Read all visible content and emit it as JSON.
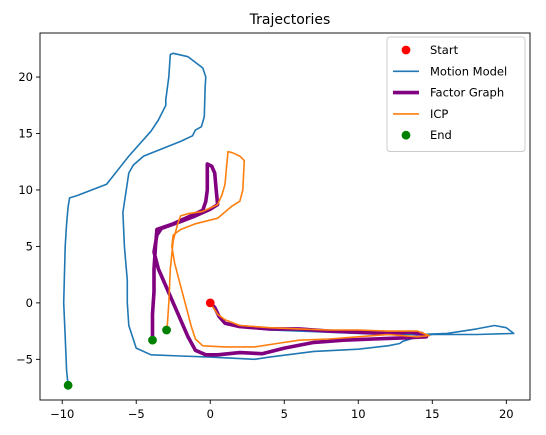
{
  "chart_data": {
    "type": "line",
    "title": "Trajectories",
    "xlabel": "",
    "ylabel": "",
    "xlim": [
      -11.5,
      21.6
    ],
    "ylim": [
      -8.6,
      23.9
    ],
    "xticks": [
      -10,
      -5,
      0,
      5,
      10,
      15,
      20
    ],
    "yticks": [
      -5,
      0,
      5,
      10,
      15,
      20
    ],
    "grid": false,
    "legend": {
      "placement": "top-right",
      "entries": [
        {
          "label": "Start",
          "kind": "marker",
          "color": "#ff0000"
        },
        {
          "label": "Motion Model",
          "kind": "line",
          "color": "#1f77b4",
          "width": "normal"
        },
        {
          "label": "Factor Graph",
          "kind": "line",
          "color": "#800080",
          "width": "thick"
        },
        {
          "label": "ICP",
          "kind": "line",
          "color": "#ff7f0e",
          "width": "normal"
        },
        {
          "label": "End",
          "kind": "marker",
          "color": "#008000"
        }
      ]
    },
    "series": [
      {
        "name": "Motion Model",
        "color": "#1f77b4",
        "style": "line",
        "points": [
          [
            0,
            0
          ],
          [
            0.5,
            -1.0
          ],
          [
            1.0,
            -1.8
          ],
          [
            2.5,
            -2.2
          ],
          [
            4.0,
            -2.4
          ],
          [
            6.0,
            -2.5
          ],
          [
            8.0,
            -2.6
          ],
          [
            10.0,
            -2.7
          ],
          [
            12.0,
            -2.8
          ],
          [
            14.0,
            -2.8
          ],
          [
            16.0,
            -2.7
          ],
          [
            18.0,
            -2.3
          ],
          [
            19.2,
            -2.0
          ],
          [
            20.0,
            -2.2
          ],
          [
            20.5,
            -2.7
          ],
          [
            18.0,
            -2.8
          ],
          [
            15.0,
            -2.8
          ],
          [
            14.0,
            -3.0
          ],
          [
            13.0,
            -3.4
          ],
          [
            12.8,
            -3.6
          ],
          [
            12.0,
            -3.8
          ],
          [
            10.0,
            -4.1
          ],
          [
            7.0,
            -4.3
          ],
          [
            4.0,
            -4.8
          ],
          [
            3.0,
            -5.0
          ],
          [
            1.5,
            -4.9
          ],
          [
            0,
            -4.8
          ],
          [
            -2.0,
            -4.7
          ],
          [
            -4.0,
            -4.6
          ],
          [
            -5.0,
            -4.0
          ],
          [
            -5.5,
            -2.0
          ],
          [
            -5.6,
            0
          ],
          [
            -5.6,
            2.0
          ],
          [
            -5.8,
            5.0
          ],
          [
            -5.9,
            8.0
          ],
          [
            -5.5,
            11.5
          ],
          [
            -5.2,
            12.2
          ],
          [
            -4.5,
            13.0
          ],
          [
            -2.0,
            14.3
          ],
          [
            -1.2,
            14.8
          ],
          [
            -1.0,
            15.3
          ],
          [
            -0.6,
            15.6
          ],
          [
            -0.4,
            16.5
          ],
          [
            -0.35,
            19.0
          ],
          [
            -0.3,
            20.0
          ],
          [
            -0.5,
            20.8
          ],
          [
            -1.5,
            21.8
          ],
          [
            -2.5,
            22.1
          ],
          [
            -2.7,
            22.0
          ],
          [
            -2.8,
            20.0
          ],
          [
            -3.0,
            18.0
          ],
          [
            -3.0,
            17.5
          ],
          [
            -3.5,
            16.2
          ],
          [
            -4.0,
            15.2
          ],
          [
            -5.5,
            13.0
          ],
          [
            -7.0,
            10.5
          ],
          [
            -9.0,
            9.5
          ],
          [
            -9.5,
            9.3
          ],
          [
            -9.6,
            8.5
          ],
          [
            -9.7,
            7.0
          ],
          [
            -9.8,
            5.0
          ],
          [
            -9.9,
            0
          ],
          [
            -9.8,
            -3.0
          ],
          [
            -9.7,
            -6.0
          ],
          [
            -9.6,
            -7.3
          ]
        ]
      },
      {
        "name": "Factor Graph",
        "color": "#800080",
        "style": "thick",
        "points": [
          [
            0,
            0
          ],
          [
            0.3,
            -0.4
          ],
          [
            0.6,
            -1.2
          ],
          [
            1.0,
            -1.8
          ],
          [
            2.0,
            -2.1
          ],
          [
            4.0,
            -2.3
          ],
          [
            6.0,
            -2.3
          ],
          [
            8.0,
            -2.5
          ],
          [
            10.0,
            -2.6
          ],
          [
            12.0,
            -2.7
          ],
          [
            13.5,
            -2.6
          ],
          [
            14.3,
            -2.7
          ],
          [
            14.6,
            -3.0
          ],
          [
            13.0,
            -3.1
          ],
          [
            11.0,
            -3.2
          ],
          [
            9.0,
            -3.3
          ],
          [
            7.0,
            -3.5
          ],
          [
            5.0,
            -4.0
          ],
          [
            3.5,
            -4.5
          ],
          [
            2.0,
            -4.4
          ],
          [
            0.5,
            -4.6
          ],
          [
            -0.3,
            -4.6
          ],
          [
            -1.0,
            -4.2
          ],
          [
            -1.5,
            -3.0
          ],
          [
            -2.0,
            -1.5
          ],
          [
            -2.5,
            0
          ],
          [
            -3.0,
            1.5
          ],
          [
            -3.5,
            3.0
          ],
          [
            -3.8,
            4.5
          ],
          [
            -3.6,
            6.0
          ],
          [
            -3.3,
            6.6
          ],
          [
            -2.0,
            7.2
          ],
          [
            -1.0,
            7.7
          ],
          [
            0,
            8.3
          ],
          [
            0.5,
            8.7
          ],
          [
            0.4,
            10.0
          ],
          [
            0.3,
            11.5
          ],
          [
            0.1,
            12.1
          ],
          [
            -0.2,
            12.3
          ],
          [
            -0.2,
            11.5
          ],
          [
            -0.2,
            10.0
          ],
          [
            -0.3,
            9.0
          ],
          [
            -0.5,
            8.2
          ],
          [
            -1.5,
            7.6
          ],
          [
            -2.5,
            7.0
          ],
          [
            -3.6,
            6.5
          ],
          [
            -3.7,
            5.0
          ],
          [
            -3.8,
            3.0
          ],
          [
            -3.8,
            1.0
          ],
          [
            -3.9,
            -1.0
          ],
          [
            -3.9,
            -3.3
          ]
        ]
      },
      {
        "name": "ICP",
        "color": "#ff7f0e",
        "style": "line",
        "points": [
          [
            0,
            0
          ],
          [
            0.2,
            -0.4
          ],
          [
            0.5,
            -1.0
          ],
          [
            1.0,
            -1.5
          ],
          [
            2.0,
            -2.0
          ],
          [
            4.0,
            -2.2
          ],
          [
            6.0,
            -2.3
          ],
          [
            8.0,
            -2.4
          ],
          [
            10.0,
            -2.4
          ],
          [
            12.0,
            -2.5
          ],
          [
            14.0,
            -2.5
          ],
          [
            14.8,
            -2.9
          ],
          [
            14.0,
            -3.0
          ],
          [
            12.0,
            -2.8
          ],
          [
            10.0,
            -3.0
          ],
          [
            8.0,
            -3.2
          ],
          [
            6.0,
            -3.3
          ],
          [
            4.5,
            -3.6
          ],
          [
            3.0,
            -3.9
          ],
          [
            1.0,
            -3.9
          ],
          [
            -0.5,
            -3.8
          ],
          [
            -1.0,
            -3.2
          ],
          [
            -1.3,
            -2.0
          ],
          [
            -1.6,
            -0.5
          ],
          [
            -2.0,
            1.5
          ],
          [
            -2.4,
            3.5
          ],
          [
            -2.6,
            5.0
          ],
          [
            -2.5,
            6.0
          ],
          [
            -2.0,
            6.5
          ],
          [
            -1.0,
            7.0
          ],
          [
            0.5,
            7.5
          ],
          [
            1.5,
            8.6
          ],
          [
            2.0,
            9.0
          ],
          [
            2.2,
            10.0
          ],
          [
            2.3,
            12.6
          ],
          [
            2.0,
            13.0
          ],
          [
            1.5,
            13.3
          ],
          [
            1.2,
            13.4
          ],
          [
            1.1,
            12.0
          ],
          [
            1.0,
            10.5
          ],
          [
            0.8,
            9.6
          ],
          [
            0.5,
            8.7
          ],
          [
            -0.5,
            8.1
          ],
          [
            -1.5,
            7.9
          ],
          [
            -2.0,
            7.7
          ],
          [
            -2.2,
            7.0
          ],
          [
            -2.5,
            5.5
          ],
          [
            -2.7,
            3.0
          ],
          [
            -2.8,
            0
          ],
          [
            -2.9,
            -2.0
          ],
          [
            -2.95,
            -2.4
          ]
        ]
      }
    ],
    "markers": [
      {
        "name": "Start",
        "color": "#ff0000",
        "points": [
          [
            0,
            0
          ]
        ]
      },
      {
        "name": "End",
        "color": "#008000",
        "points": [
          [
            -9.6,
            -7.3
          ],
          [
            -3.9,
            -3.3
          ],
          [
            -2.95,
            -2.4
          ]
        ]
      }
    ]
  }
}
